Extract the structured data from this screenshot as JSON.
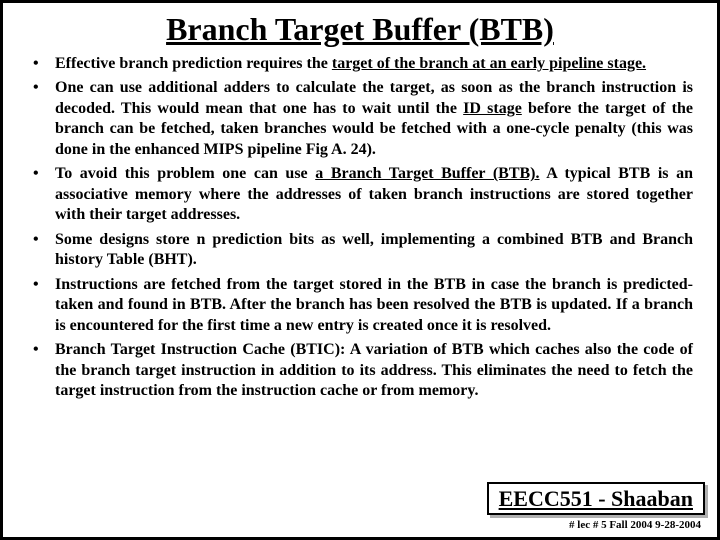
{
  "title": "Branch Target Buffer (BTB)",
  "bullets": [
    {
      "pre": "Effective branch prediction requires the ",
      "u": "target of the branch at an early pipeline stage.",
      "post": ""
    },
    {
      "pre": "One can use additional adders to calculate the target, as soon as the branch instruction is decoded. This would mean that one has to wait until the ",
      "u": "ID stage",
      "post": " before the target of the branch can be fetched, taken branches would be fetched with a one-cycle penalty (this was done in the enhanced MIPS pipeline Fig A. 24)."
    },
    {
      "pre": "To avoid this problem one can use ",
      "u": "a Branch Target Buffer (BTB).",
      "post": " A typical BTB is an associative memory where the addresses of taken branch instructions are stored together with their target addresses."
    },
    {
      "pre": "Some designs store  n  prediction bits as well, implementing a combined BTB and Branch history Table (BHT).",
      "u": "",
      "post": ""
    },
    {
      "pre": "Instructions are fetched from the target stored in the BTB in case the branch is predicted-taken and found in BTB.  After the branch has been resolved the BTB is updated. If a branch is encountered for the first time a new entry is created once it is resolved.",
      "u": "",
      "post": ""
    },
    {
      "pre": "Branch Target Instruction Cache (BTIC):  A variation of BTB which caches also the code of the branch target instruction in addition to its address. This eliminates the need to fetch the target instruction from the instruction cache or from memory.",
      "u": "",
      "post": ""
    }
  ],
  "course": "EECC551 - Shaaban",
  "footer": "#  lec # 5   Fall 2004  9-28-2004"
}
